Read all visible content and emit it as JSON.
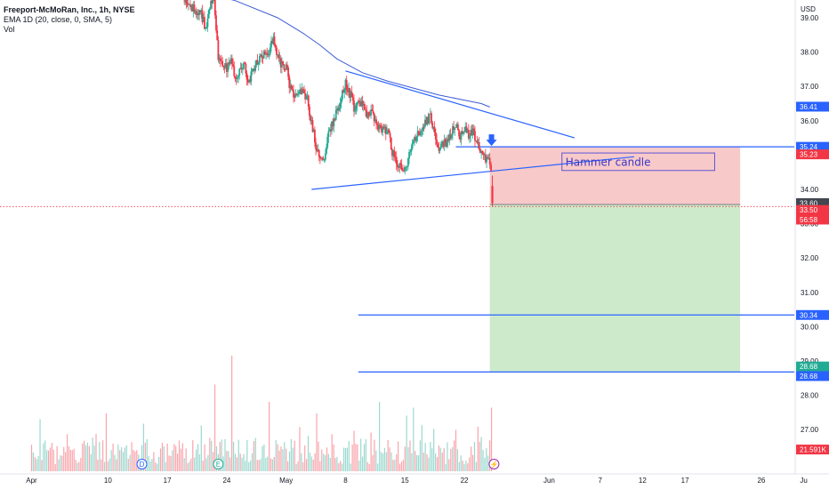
{
  "header": {
    "symbol_line": "Freeport-McMoRan, Inc., 1h, NYSE",
    "ema_line": "EMA  1D (20, close, 0, SMA, 5)",
    "vol_line": "Vol",
    "currency": "USD"
  },
  "chart_data": {
    "type": "candlestick",
    "title": "Freeport-McMoRan, Inc., 1h, NYSE",
    "ylim": [
      26.4,
      39.4
    ],
    "y_ticks": [
      39.0,
      38.0,
      37.0,
      36.0,
      35.0,
      34.0,
      33.0,
      32.0,
      31.0,
      30.0,
      29.0,
      28.0,
      27.0
    ],
    "y_tick_labels": [
      "39.00",
      "38.00",
      "37.00",
      "36.00",
      "35.00",
      "34.00",
      "33.00",
      "32.00",
      "31.00",
      "30.00",
      "29.00",
      "28.00",
      "27.00"
    ],
    "x_ticks": [
      {
        "label": "Apr",
        "day": 1
      },
      {
        "label": "10",
        "day": 10
      },
      {
        "label": "17",
        "day": 17
      },
      {
        "label": "24",
        "day": 24
      },
      {
        "label": "May",
        "day": 31
      },
      {
        "label": "8",
        "day": 38
      },
      {
        "label": "15",
        "day": 45
      },
      {
        "label": "22",
        "day": 52
      },
      {
        "label": "Jun",
        "day": 62
      },
      {
        "label": "7",
        "day": 68
      },
      {
        "label": "12",
        "day": 73
      },
      {
        "label": "17",
        "day": 78
      },
      {
        "label": "26",
        "day": 87
      },
      {
        "label": "Ju",
        "day": 92
      }
    ],
    "price_path": [
      [
        19,
        39.5
      ],
      [
        21,
        39.1
      ],
      [
        21.5,
        38.7
      ],
      [
        22,
        39.3
      ],
      [
        22.5,
        39.6
      ],
      [
        23,
        37.9
      ],
      [
        24,
        37.5
      ],
      [
        24.5,
        37.8
      ],
      [
        25,
        37.3
      ],
      [
        26,
        37.7
      ],
      [
        26.5,
        37.1
      ],
      [
        27,
        37.4
      ],
      [
        28,
        37.9
      ],
      [
        29,
        38.0
      ],
      [
        29.5,
        38.5
      ],
      [
        30,
        37.9
      ],
      [
        30.5,
        37.6
      ],
      [
        31,
        37.6
      ],
      [
        31.5,
        36.9
      ],
      [
        32,
        36.7
      ],
      [
        33,
        36.9
      ],
      [
        33.5,
        36.6
      ],
      [
        34,
        35.9
      ],
      [
        34.5,
        35.3
      ],
      [
        35,
        34.9
      ],
      [
        35.5,
        34.8
      ],
      [
        36,
        35.6
      ],
      [
        37,
        36.3
      ],
      [
        38,
        37.1
      ],
      [
        38.5,
        36.8
      ],
      [
        39,
        36.4
      ],
      [
        40,
        36.5
      ],
      [
        40.5,
        36.2
      ],
      [
        41,
        36.3
      ],
      [
        42,
        35.8
      ],
      [
        43,
        35.7
      ],
      [
        43.5,
        35.1
      ],
      [
        44,
        34.8
      ],
      [
        44.5,
        34.7
      ],
      [
        45,
        34.6
      ],
      [
        45.5,
        35.0
      ],
      [
        46,
        35.4
      ],
      [
        47,
        35.8
      ],
      [
        48,
        36.1
      ],
      [
        48.5,
        35.7
      ],
      [
        49,
        35.2
      ],
      [
        50,
        35.4
      ],
      [
        51,
        35.9
      ],
      [
        51.5,
        35.5
      ],
      [
        52,
        35.8
      ],
      [
        52.5,
        35.6
      ],
      [
        53,
        35.7
      ],
      [
        53.5,
        35.4
      ],
      [
        54,
        35.1
      ],
      [
        54.5,
        34.9
      ],
      [
        55,
        34.8
      ],
      [
        55.3,
        34.5
      ]
    ],
    "hammer_candle": {
      "day": 55.3,
      "open": 34.1,
      "high": 34.4,
      "low": 33.5,
      "close": 33.6
    },
    "ema_1d": [
      [
        20,
        39.8
      ],
      [
        25,
        39.5
      ],
      [
        30,
        39.0
      ],
      [
        33,
        38.55
      ],
      [
        35,
        38.2
      ],
      [
        37,
        37.8
      ],
      [
        40,
        37.4
      ],
      [
        43,
        37.15
      ],
      [
        46,
        36.95
      ],
      [
        49,
        36.75
      ],
      [
        52,
        36.6
      ],
      [
        54,
        36.5
      ],
      [
        55,
        36.4
      ]
    ],
    "trendlines": [
      {
        "name": "descending-resistance",
        "from": [
          38,
          37.45
        ],
        "to": [
          65,
          35.5
        ]
      },
      {
        "name": "ascending-support",
        "from": [
          34,
          34.0
        ],
        "to": [
          72,
          34.95
        ]
      },
      {
        "name": "small-horizontal",
        "from": [
          51,
          35.24
        ],
        "to": [
          55,
          35.24
        ]
      }
    ],
    "horizontal_levels": [
      {
        "name": "entry-line",
        "value": 35.24,
        "from_day": 55
      },
      {
        "name": "target-1",
        "value": 30.34,
        "from_day": 39.5
      },
      {
        "name": "target-2",
        "value": 28.68,
        "from_day": 39.5
      }
    ],
    "position": {
      "start_day": 55,
      "end_day": 84.5,
      "stop": 35.24,
      "entry": 33.56,
      "target": 28.68
    },
    "annotation": {
      "text": "Hammer candle",
      "day_from": 63.5,
      "day_to": 81.5,
      "price_from": 34.55,
      "price_to": 35.06
    },
    "last_price_line": 33.5,
    "price_badges": [
      {
        "value": "36.41",
        "price": 36.41,
        "color": "#2962ff"
      },
      {
        "value": "35.24",
        "price": 35.24,
        "color": "#2962ff"
      },
      {
        "value": "35.23",
        "price": 35.02,
        "color": "#f23645"
      },
      {
        "value": "33.60",
        "price": 33.6,
        "color": "#434651"
      },
      {
        "value": "33.50",
        "price": 33.4,
        "color": "#f23645"
      },
      {
        "value": "56:58",
        "price": 33.12,
        "color": "#f23645"
      },
      {
        "value": "30.34",
        "price": 30.34,
        "color": "#2962ff"
      },
      {
        "value": "28.68",
        "price": 28.84,
        "color": "#22ab94"
      },
      {
        "value": "28.68",
        "price": 28.56,
        "color": "#2962ff"
      },
      {
        "value": "21.591K",
        "price": 26.42,
        "color": "#f23645"
      }
    ],
    "events": [
      {
        "label": "D",
        "day": 14,
        "color": "#2962ff"
      },
      {
        "label": "E",
        "day": 23,
        "color": "#22ab94"
      },
      {
        "label": "⚡",
        "day": 55.5,
        "color": "#9c27b0"
      }
    ],
    "volume_seed": 7,
    "volume_spikes": [
      {
        "day": 2,
        "value": 0.45
      },
      {
        "day": 22.5,
        "value": 0.75
      },
      {
        "day": 24.5,
        "value": 1.0
      },
      {
        "day": 29,
        "value": 0.6
      },
      {
        "day": 34.5,
        "value": 0.5
      },
      {
        "day": 42,
        "value": 0.6
      },
      {
        "day": 46,
        "value": 0.55
      },
      {
        "day": 55.2,
        "value": 0.55
      }
    ],
    "colors": {
      "up": "#22ab94",
      "down": "#f23645",
      "ema": "#3d5cd6",
      "line": "#2962ff",
      "risk_fill": "#f8c9c9",
      "reward_fill": "#cdebcb",
      "annotation_border": "#5b57d6"
    }
  }
}
